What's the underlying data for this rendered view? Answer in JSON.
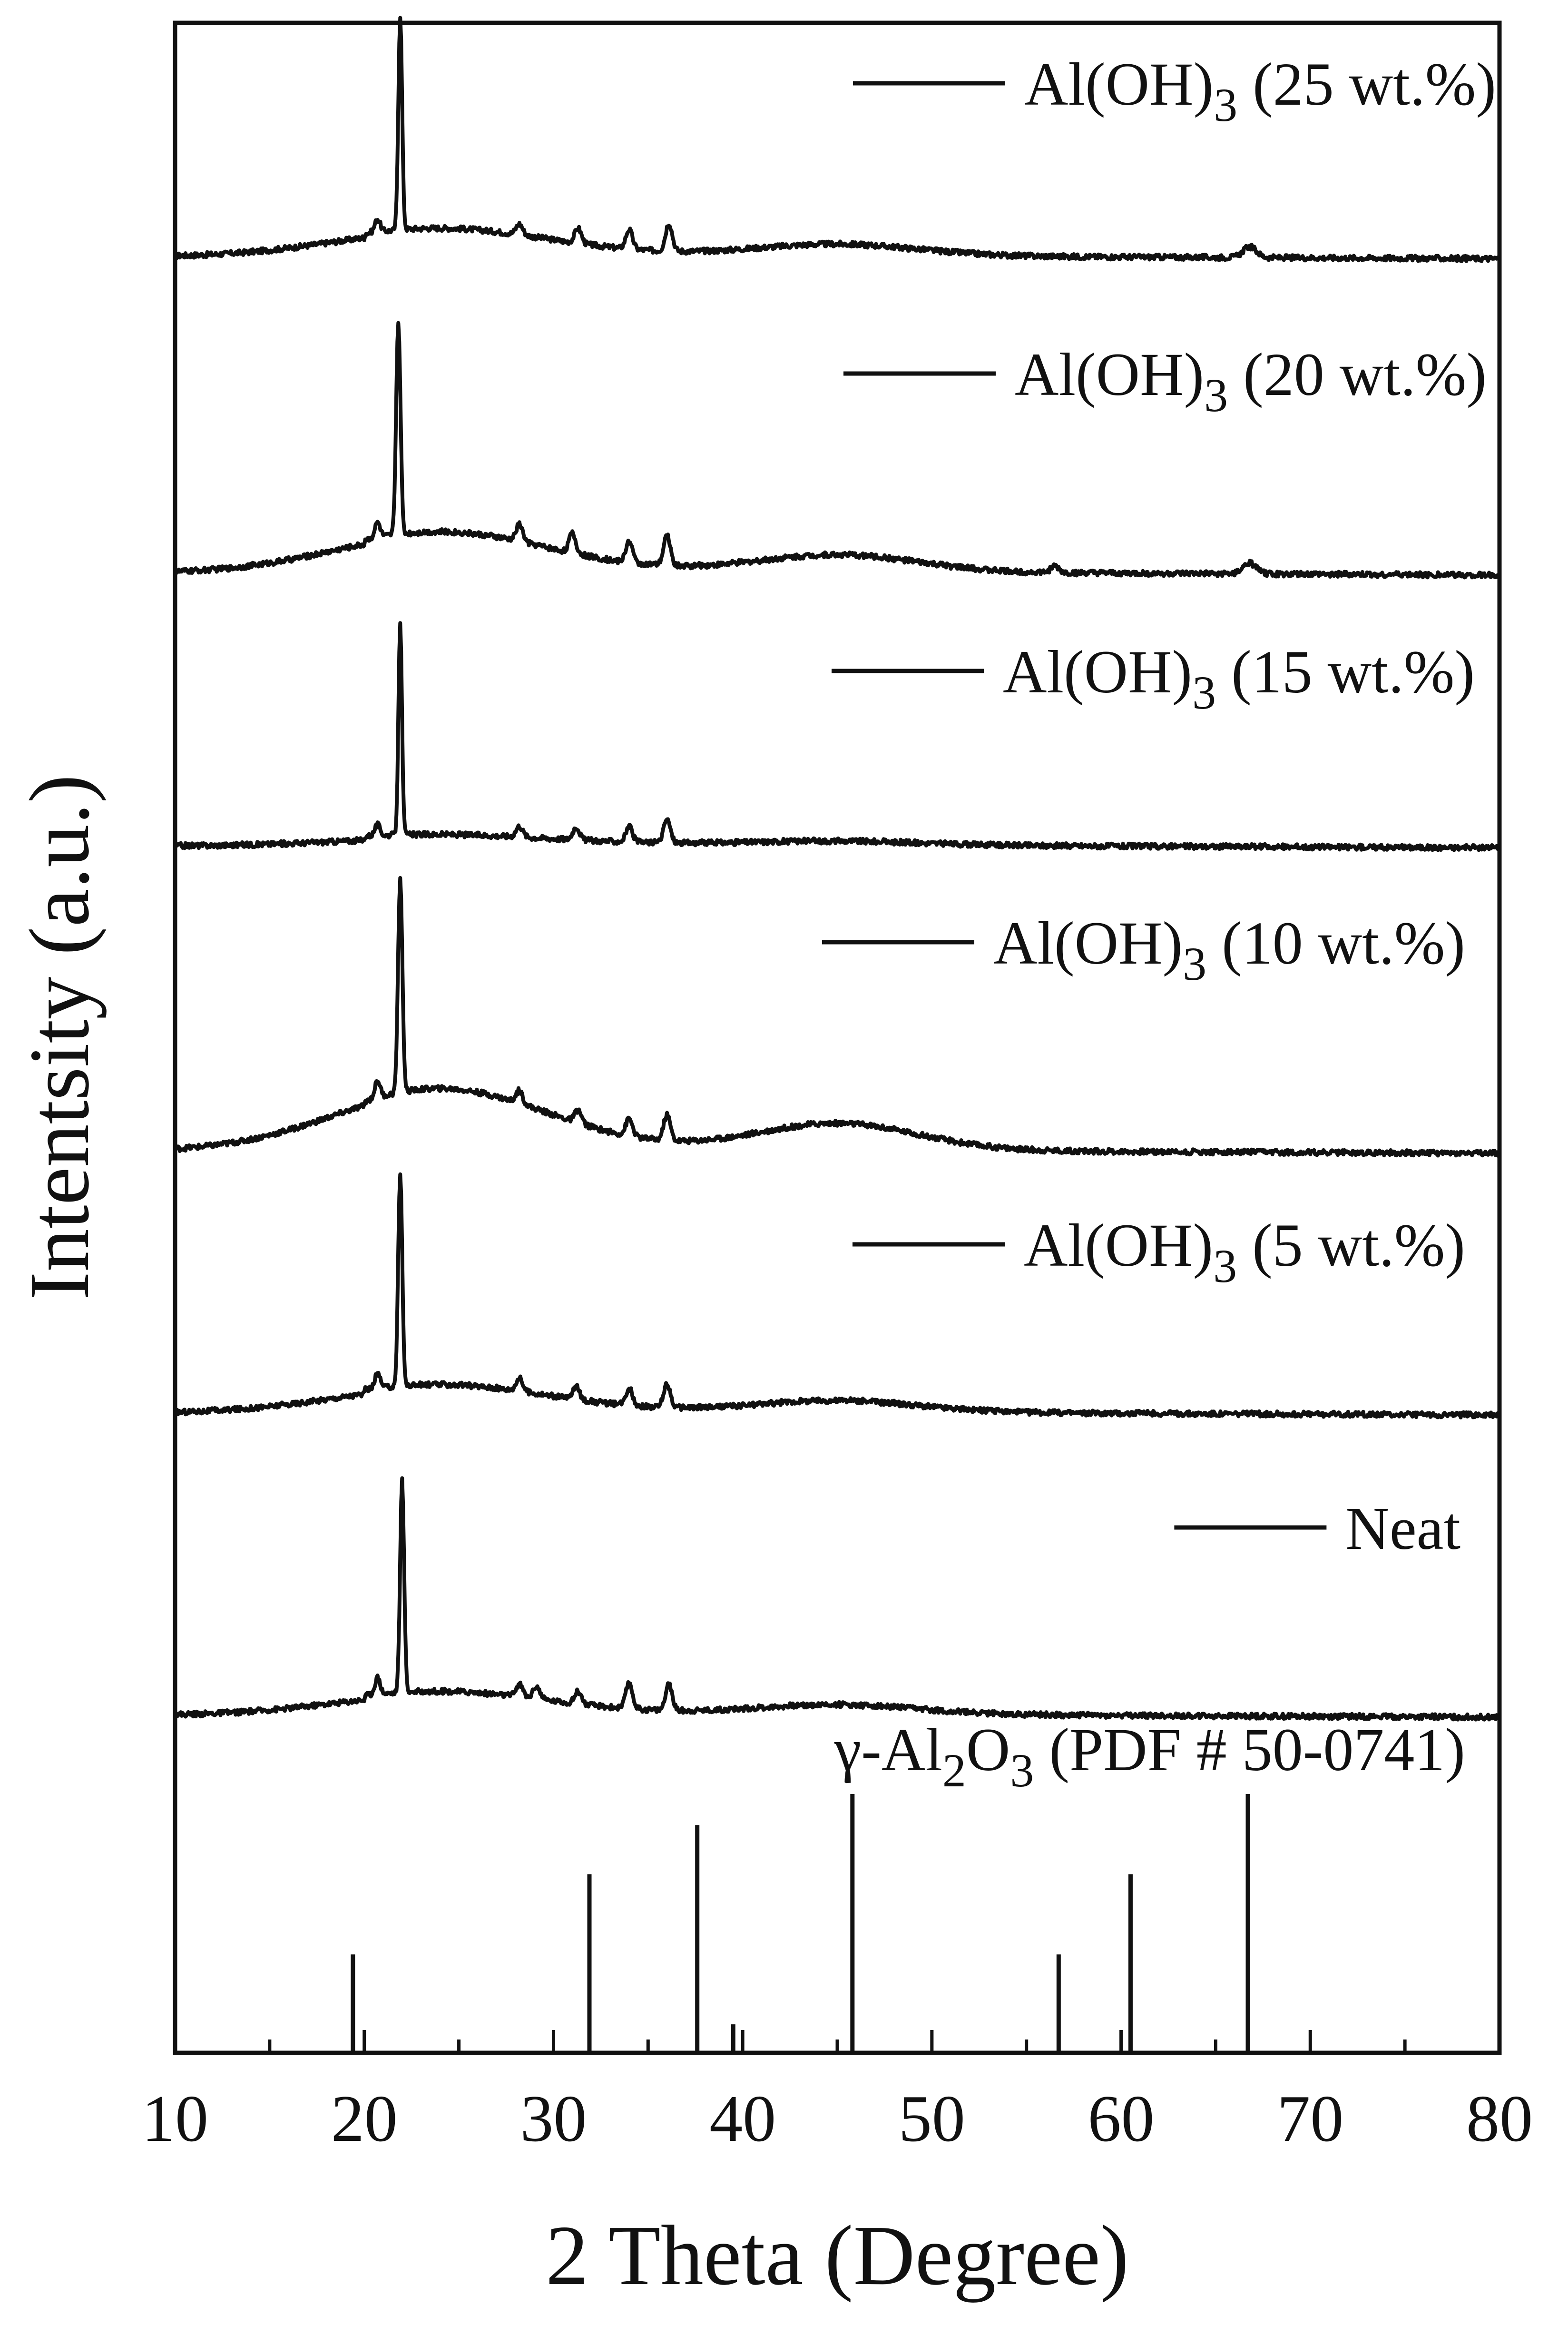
{
  "chart_data": {
    "type": "line",
    "xlabel": "2 Theta (Degree)",
    "ylabel": "Intentsity (a.u.)",
    "xlim": [
      10,
      80
    ],
    "x_ticks": [
      "10",
      "20",
      "30",
      "40",
      "50",
      "60",
      "70",
      "80"
    ],
    "grid": false,
    "legend": "per-series labels above each curve",
    "line_color": "#111111",
    "series": [
      {
        "name": "Al(OH)3 (25 wt.%)",
        "label_main": "Al(OH)",
        "label_sub": "3",
        "label_rest": " (25 wt.%)",
        "peaks": [
          {
            "x": 20.7,
            "h": 0.06,
            "w": 0.2
          },
          {
            "x": 21.9,
            "h": 1.0,
            "w": 0.14
          },
          {
            "x": 28.2,
            "h": 0.05,
            "w": 0.25
          },
          {
            "x": 31.3,
            "h": 0.07,
            "w": 0.25
          },
          {
            "x": 34.0,
            "h": 0.09,
            "w": 0.25
          },
          {
            "x": 36.1,
            "h": 0.13,
            "w": 0.25
          },
          {
            "x": 66.8,
            "h": 0.05,
            "w": 0.5
          }
        ],
        "hump": 0.12
      },
      {
        "name": "Al(OH)3 (20 wt.%)",
        "label_main": "Al(OH)",
        "label_sub": "3",
        "label_rest": " (20 wt.%)",
        "peaks": [
          {
            "x": 20.7,
            "h": 0.07,
            "w": 0.2
          },
          {
            "x": 21.8,
            "h": 1.0,
            "w": 0.16
          },
          {
            "x": 28.2,
            "h": 0.08,
            "w": 0.25
          },
          {
            "x": 31.0,
            "h": 0.09,
            "w": 0.25
          },
          {
            "x": 34.0,
            "h": 0.1,
            "w": 0.25
          },
          {
            "x": 36.0,
            "h": 0.14,
            "w": 0.25
          },
          {
            "x": 56.5,
            "h": 0.03,
            "w": 0.3
          },
          {
            "x": 66.8,
            "h": 0.05,
            "w": 0.5
          }
        ],
        "hump": 0.18
      },
      {
        "name": "Al(OH)3 (15 wt.%)",
        "label_main": "Al(OH)",
        "label_sub": "3",
        "label_rest": " (15 wt.%)",
        "peaks": [
          {
            "x": 20.7,
            "h": 0.05,
            "w": 0.2
          },
          {
            "x": 21.9,
            "h": 1.0,
            "w": 0.13
          },
          {
            "x": 28.2,
            "h": 0.05,
            "w": 0.25
          },
          {
            "x": 31.2,
            "h": 0.06,
            "w": 0.25
          },
          {
            "x": 34.0,
            "h": 0.07,
            "w": 0.25
          },
          {
            "x": 36.0,
            "h": 0.11,
            "w": 0.25
          }
        ],
        "hump": 0.04
      },
      {
        "name": "Al(OH)3 (10 wt.%)",
        "label_main": "Al(OH)",
        "label_sub": "3",
        "label_rest": " (10 wt.%)",
        "peaks": [
          {
            "x": 20.7,
            "h": 0.08,
            "w": 0.2
          },
          {
            "x": 21.9,
            "h": 1.0,
            "w": 0.16
          },
          {
            "x": 28.2,
            "h": 0.06,
            "w": 0.25
          },
          {
            "x": 31.3,
            "h": 0.06,
            "w": 0.25
          },
          {
            "x": 34.0,
            "h": 0.08,
            "w": 0.25
          },
          {
            "x": 36.0,
            "h": 0.12,
            "w": 0.25
          }
        ],
        "hump": 0.28
      },
      {
        "name": "Al(OH)3 (5 wt.%)",
        "label_main": "Al(OH)",
        "label_sub": "3",
        "label_rest": " (5 wt.%)",
        "peaks": [
          {
            "x": 20.7,
            "h": 0.07,
            "w": 0.2
          },
          {
            "x": 21.9,
            "h": 1.0,
            "w": 0.15
          },
          {
            "x": 28.2,
            "h": 0.06,
            "w": 0.25
          },
          {
            "x": 31.2,
            "h": 0.06,
            "w": 0.25
          },
          {
            "x": 34.0,
            "h": 0.08,
            "w": 0.25
          },
          {
            "x": 36.0,
            "h": 0.11,
            "w": 0.25
          }
        ],
        "hump": 0.12
      },
      {
        "name": "Neat",
        "label_main": "Neat",
        "label_sub": "",
        "label_rest": "",
        "peaks": [
          {
            "x": 20.7,
            "h": 0.08,
            "w": 0.2
          },
          {
            "x": 22.0,
            "h": 1.0,
            "w": 0.15
          },
          {
            "x": 28.2,
            "h": 0.06,
            "w": 0.25
          },
          {
            "x": 29.1,
            "h": 0.06,
            "w": 0.25
          },
          {
            "x": 31.3,
            "h": 0.06,
            "w": 0.25
          },
          {
            "x": 34.0,
            "h": 0.12,
            "w": 0.25
          },
          {
            "x": 36.1,
            "h": 0.12,
            "w": 0.25
          }
        ],
        "hump": 0.1
      }
    ],
    "reference": {
      "name": "γ-Al2O3 (PDF # 50-0741)",
      "label_parts": [
        {
          "t": "γ-Al",
          "sub": false
        },
        {
          "t": "2",
          "sub": true
        },
        {
          "t": "O",
          "sub": false
        },
        {
          "t": "3",
          "sub": true
        },
        {
          "t": " (PDF # 50-0741)",
          "sub": false
        }
      ],
      "lines": [
        {
          "x": 19.4,
          "h": 0.38
        },
        {
          "x": 31.9,
          "h": 0.69
        },
        {
          "x": 37.6,
          "h": 0.88
        },
        {
          "x": 39.5,
          "h": 0.11
        },
        {
          "x": 45.8,
          "h": 1.0
        },
        {
          "x": 56.7,
          "h": 0.38
        },
        {
          "x": 60.5,
          "h": 0.69
        },
        {
          "x": 66.7,
          "h": 1.0
        }
      ]
    }
  }
}
